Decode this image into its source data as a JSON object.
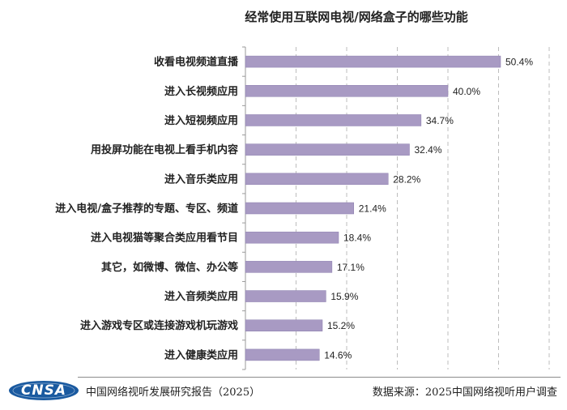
{
  "footer": {
    "logo_text": "CNSA",
    "report": "中国网络视听发展研究报告（2025）",
    "source": "数据来源：2025中国网络视听用户调查"
  },
  "colors": {
    "bar": "#a89ac3",
    "bar_edge": "#8c7fae",
    "grid": "#bdbdbd",
    "logo": "#1a5aa0"
  },
  "chart_data": {
    "type": "bar",
    "orientation": "horizontal",
    "title": "经常使用互联网电视/网络盒子的哪些功能",
    "categories": [
      "收看电视频道直播",
      "进入长视频应用",
      "进入短视频应用",
      "用投屏功能在电视上看手机内容",
      "进入音乐类应用",
      "进入电视/盒子推荐的专题、专区、频道",
      "进入电视猫等聚合类应用看节目",
      "其它，如微博、微信、办公等",
      "进入音频类应用",
      "进入游戏专区或连接游戏机玩游戏",
      "进入健康类应用"
    ],
    "values": [
      50.4,
      40.0,
      34.7,
      32.4,
      28.2,
      21.4,
      18.4,
      17.1,
      15.9,
      15.2,
      14.6
    ],
    "value_labels": [
      "50.4%",
      "40.0%",
      "34.7%",
      "32.4%",
      "28.2%",
      "21.4%",
      "18.4%",
      "17.1%",
      "15.9%",
      "15.2%",
      "14.6%"
    ],
    "xlim": [
      0,
      60
    ],
    "grid": true
  }
}
